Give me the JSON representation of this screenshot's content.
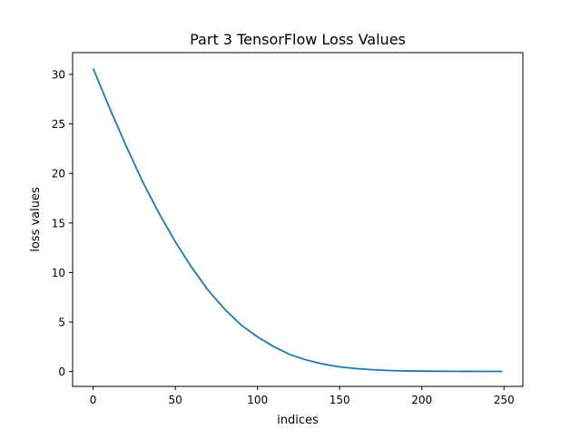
{
  "chart_data": {
    "type": "line",
    "title": "Part 3 TensorFlow Loss Values",
    "xlabel": "indices",
    "ylabel": "loss values",
    "xlim": [
      -12.5,
      261.5
    ],
    "ylim": [
      -1.5,
      32.2
    ],
    "xticks": [
      0,
      50,
      100,
      150,
      200,
      250
    ],
    "yticks": [
      0,
      5,
      10,
      15,
      20,
      25,
      30
    ],
    "grid": false,
    "legend": "none",
    "series": [
      {
        "color": "#1f77b4",
        "x": [
          0,
          10,
          20,
          30,
          40,
          50,
          60,
          70,
          80,
          90,
          100,
          110,
          120,
          130,
          140,
          150,
          160,
          170,
          180,
          190,
          200,
          210,
          220,
          230,
          240,
          249
        ],
        "values": [
          30.6,
          26.6,
          22.8,
          19.2,
          16.0,
          13.1,
          10.5,
          8.2,
          6.3,
          4.7,
          3.5,
          2.5,
          1.7,
          1.15,
          0.75,
          0.47,
          0.3,
          0.18,
          0.1,
          0.06,
          0.04,
          0.03,
          0.02,
          0.015,
          0.01,
          0.01
        ]
      }
    ]
  }
}
